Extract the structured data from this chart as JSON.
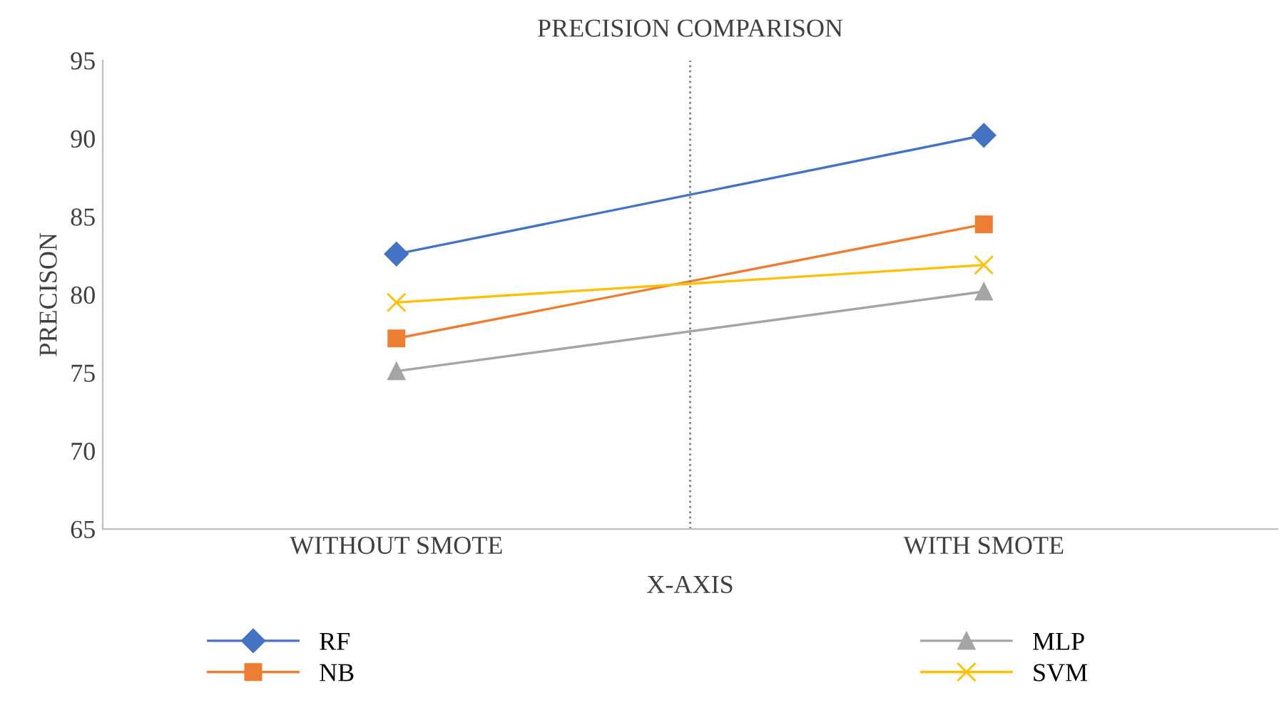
{
  "chart_data": {
    "type": "line",
    "title": "PRECISION COMPARISON",
    "xlabel": "X-AXIS",
    "ylabel": "PRECISON",
    "categories": [
      "WITHOUT SMOTE",
      "WITH SMOTE"
    ],
    "series": [
      {
        "name": "RF",
        "color": "#4472c4",
        "marker": "diamond",
        "values": [
          82.6,
          90.2
        ]
      },
      {
        "name": "NB",
        "color": "#ed7d31",
        "marker": "square",
        "values": [
          77.2,
          84.5
        ]
      },
      {
        "name": "MLP",
        "color": "#a5a5a5",
        "marker": "triangle",
        "values": [
          75.1,
          80.2
        ]
      },
      {
        "name": "SVM",
        "color": "#ffc000",
        "marker": "cross",
        "values": [
          79.5,
          81.9
        ]
      }
    ],
    "ylim": [
      65,
      95
    ],
    "yticks": [
      65,
      70,
      75,
      80,
      85,
      90,
      95
    ],
    "grid": false,
    "legend": "bottom"
  }
}
